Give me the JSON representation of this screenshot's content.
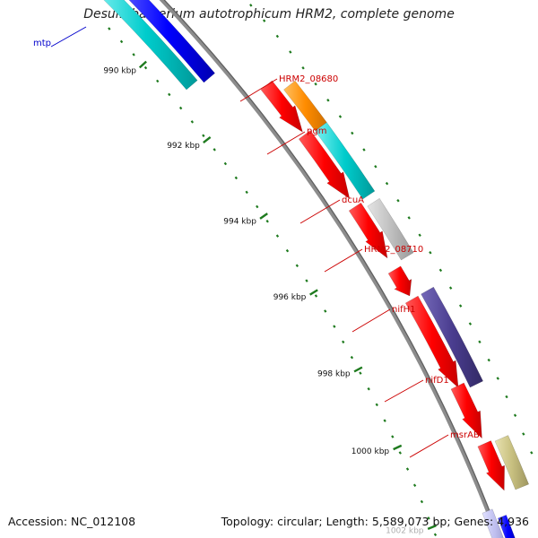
{
  "title": "Desulfobacterium autotrophicum HRM2, complete genome",
  "footer": {
    "accession": "Accession: NC_012108",
    "summary": "Topology: circular; Length: 5,589,073 bp; Genes: 4,936"
  },
  "colors": {
    "backbone": "#8c8c8c",
    "tick": "#1e7a1e",
    "label_red": "#cc0000",
    "label_blue": "#0000cc"
  },
  "ticks": [
    {
      "label": "990 kbp"
    },
    {
      "label": "992 kbp"
    },
    {
      "label": "994 kbp"
    },
    {
      "label": "996 kbp"
    },
    {
      "label": "998 kbp"
    },
    {
      "label": "1000 kbp"
    },
    {
      "label": "1002 kbp"
    }
  ],
  "genes": [
    {
      "label": "mtp",
      "color": "#0000ff",
      "label_color": "#0000cc"
    },
    {
      "label": "HRM2_08680",
      "color": "#ff8c00",
      "label_color": "#cc0000"
    },
    {
      "label": "pgm",
      "color": "#00cccc",
      "label_color": "#cc0000"
    },
    {
      "label": "dcuA",
      "color": "#c0c0c0",
      "label_color": "#cc0000"
    },
    {
      "label": "HRM2_08710",
      "color": "#ff0000",
      "label_color": "#cc0000"
    },
    {
      "label": "nifH1",
      "color": "#4a3d8f",
      "label_color": "#cc0000"
    },
    {
      "label": "nifD1",
      "color": "#ff0000",
      "label_color": "#cc0000"
    },
    {
      "label": "msrAB",
      "color": "#c8c080",
      "label_color": "#cc0000"
    }
  ]
}
